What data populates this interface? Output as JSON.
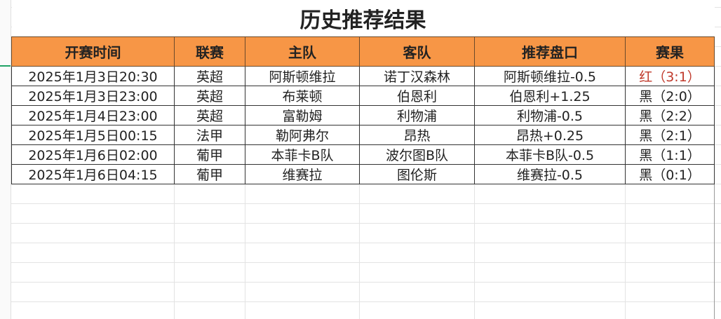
{
  "title": "历史推荐结果",
  "columns": [
    "开赛时间",
    "联赛",
    "主队",
    "客队",
    "推荐盘口",
    "赛果"
  ],
  "rows": [
    [
      "2025年1月3日20:30",
      "英超",
      "阿斯顿维拉",
      "诺丁汉森林",
      "阿斯顿维拉-0.5",
      "红（3:1）"
    ],
    [
      "2025年1月3日23:00",
      "英超",
      "布莱顿",
      "伯恩利",
      "伯恩利+1.25",
      "黑（2:0）"
    ],
    [
      "2025年1月4日23:00",
      "英超",
      "富勒姆",
      "利物浦",
      "利物浦-0.5",
      "黑（2:2）"
    ],
    [
      "2025年1月5日00:15",
      "法甲",
      "勒阿弗尔",
      "昂热",
      "昂热+0.25",
      "黑（2:1）"
    ],
    [
      "2025年1月6日02:00",
      "葡甲",
      "本菲卡B队",
      "波尔图B队",
      "本菲卡B队-0.5",
      "黑（1:1）"
    ],
    [
      "2025年1月6日04:15",
      "葡甲",
      "维赛拉",
      "图伦斯",
      "维赛拉-0.5",
      "黑（0:1）"
    ]
  ],
  "colors": {
    "header_fill": "#f79646",
    "win": "#c0392b",
    "loss": "#222222",
    "selection": "#21a366"
  }
}
